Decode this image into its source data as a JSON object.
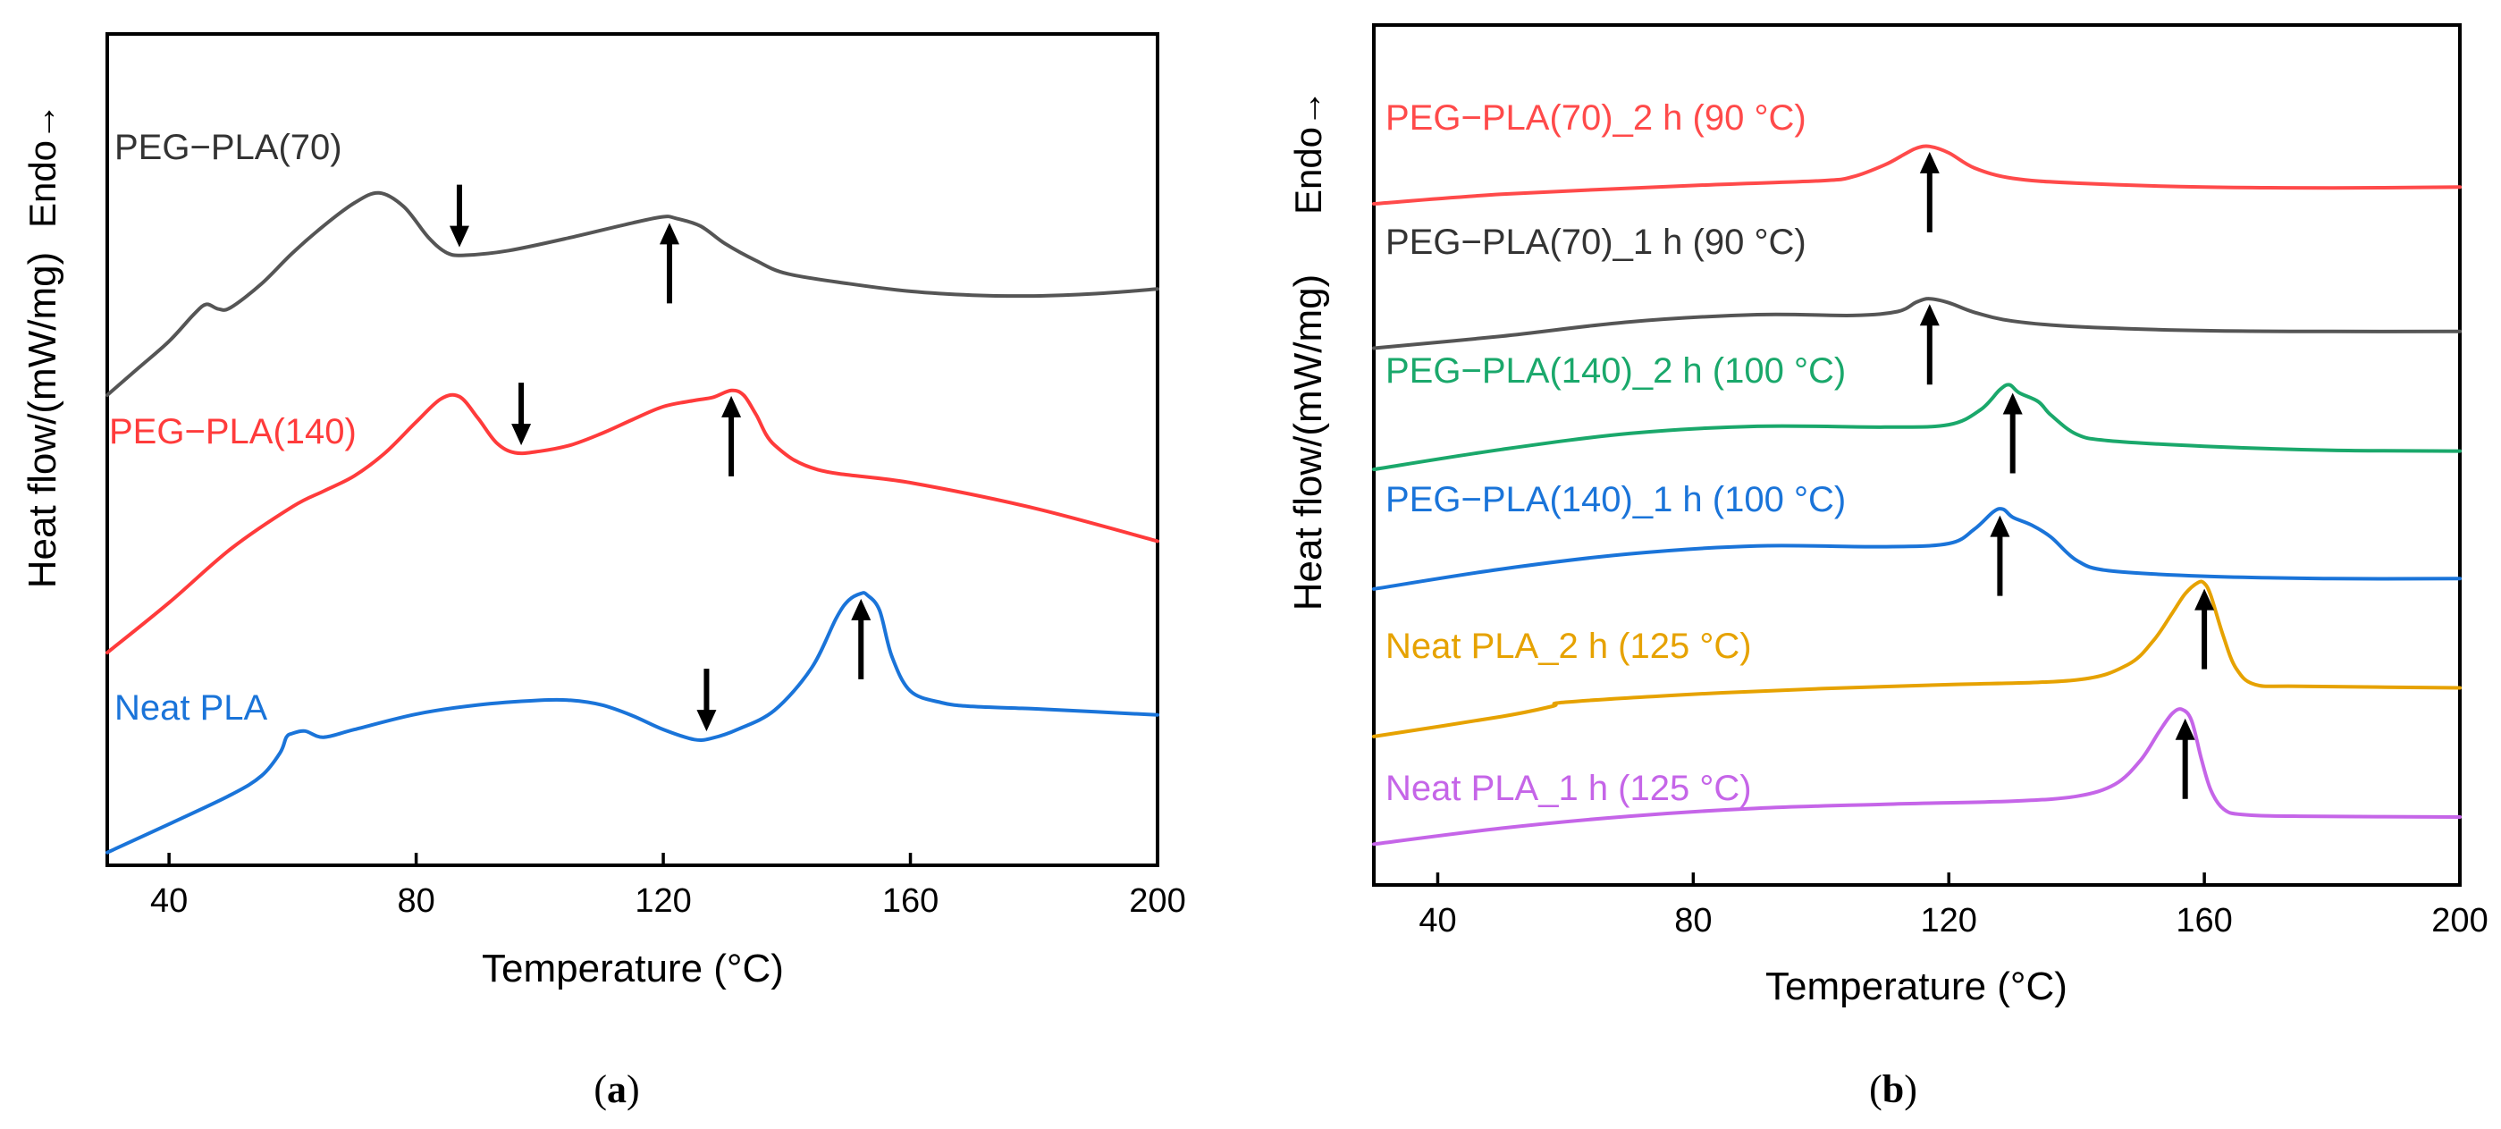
{
  "chart_data": [
    {
      "type": "line",
      "panel_label": "a",
      "xlabel": "Temperature (°C)",
      "ylabel": "Heat flow/(mW/mg)",
      "y_direction_label": "Endo→",
      "xlim": [
        30,
        200
      ],
      "xticks": [
        40,
        80,
        120,
        160,
        200
      ],
      "ylim": [
        0,
        100
      ],
      "grid": false,
      "series": [
        {
          "name": "PEG−PLA(70)",
          "color": "#555555",
          "x": [
            30,
            35,
            40,
            44,
            46,
            48,
            50,
            55,
            60,
            65,
            70,
            74,
            78,
            82,
            85,
            88,
            95,
            105,
            115,
            120,
            122,
            126,
            130,
            135,
            140,
            150,
            160,
            170,
            180,
            190,
            200
          ],
          "y": [
            60.0,
            63.5,
            67.0,
            70.5,
            71.8,
            71.2,
            71.4,
            74.5,
            78.5,
            82.0,
            85.0,
            86.3,
            84.5,
            80.5,
            78.5,
            78.2,
            78.8,
            80.5,
            82.4,
            83.2,
            83.0,
            82.0,
            79.7,
            77.5,
            75.8,
            74.5,
            73.5,
            73.0,
            72.9,
            73.2,
            73.8
          ],
          "arrows": [
            {
              "x": 87,
              "direction": "down"
            },
            {
              "x": 121,
              "direction": "up"
            }
          ]
        },
        {
          "name": "PEG−PLA(140)",
          "color": "#ff3b3b",
          "x": [
            30,
            40,
            50,
            60,
            65,
            70,
            75,
            80,
            84,
            87,
            90,
            93,
            96,
            100,
            105,
            110,
            115,
            120,
            125,
            128,
            131,
            133,
            135,
            138,
            145,
            160,
            180,
            200
          ],
          "y": [
            26.5,
            33.0,
            40.0,
            45.5,
            47.5,
            49.5,
            52.5,
            56.5,
            59.5,
            59.8,
            57.0,
            53.8,
            52.5,
            52.7,
            53.5,
            55.0,
            56.8,
            58.5,
            59.3,
            59.7,
            60.6,
            60.0,
            57.5,
            53.5,
            50.3,
            48.6,
            45.3,
            41.0
          ],
          "arrows": [
            {
              "x": 97,
              "direction": "down"
            },
            {
              "x": 131,
              "direction": "up"
            }
          ]
        },
        {
          "name": "Neat PLA",
          "color": "#1a74d9",
          "x": [
            30,
            40,
            50,
            55,
            58,
            59,
            60,
            62,
            65,
            70,
            80,
            90,
            100,
            105,
            110,
            115,
            120,
            125,
            128,
            132,
            138,
            144,
            148,
            150,
            152,
            153,
            155,
            157,
            160,
            165,
            170,
            180,
            190,
            200
          ],
          "y": [
            0.5,
            4.2,
            8.0,
            10.5,
            13.5,
            15.5,
            16.0,
            16.3,
            15.5,
            16.5,
            18.5,
            19.7,
            20.3,
            20.3,
            19.7,
            18.3,
            16.5,
            15.2,
            15.4,
            16.5,
            19.0,
            24.5,
            31.0,
            33.3,
            34.2,
            34.0,
            32.0,
            26.0,
            21.5,
            20.0,
            19.5,
            19.2,
            18.8,
            18.4
          ],
          "arrows": [
            {
              "x": 127,
              "direction": "down"
            },
            {
              "x": 152,
              "direction": "up"
            }
          ]
        }
      ]
    },
    {
      "type": "line",
      "panel_label": "b",
      "xlabel": "Temperature (°C)",
      "ylabel": "Heat flow/(mW/mg)",
      "y_direction_label": "Endo→",
      "xlim": [
        30,
        200
      ],
      "xticks": [
        40,
        80,
        120,
        160,
        200
      ],
      "ylim": [
        0,
        100
      ],
      "grid": false,
      "series": [
        {
          "name": "PEG−PLA(70)_2 h (90 °C)",
          "color": "#ff4a4a",
          "x": [
            30,
            50,
            80,
            100,
            105,
            110,
            113,
            115,
            117,
            120,
            124,
            130,
            140,
            160,
            180,
            200
          ],
          "y": [
            84.3,
            85.5,
            86.6,
            87.2,
            87.7,
            89.2,
            90.5,
            91.3,
            91.5,
            90.7,
            88.8,
            87.5,
            86.9,
            86.4,
            86.3,
            86.4
          ],
          "arrows": [
            {
              "x": 117,
              "direction": "up"
            }
          ]
        },
        {
          "name": "PEG−PLA(70)_1 h (90 °C)",
          "color": "#555555",
          "x": [
            30,
            50,
            70,
            90,
            105,
            112,
            115,
            117,
            120,
            124,
            130,
            140,
            160,
            180,
            200
          ],
          "y": [
            66.2,
            67.7,
            69.5,
            70.4,
            70.3,
            70.8,
            72.0,
            72.4,
            71.9,
            70.7,
            69.6,
            68.9,
            68.4,
            68.3,
            68.3
          ],
          "arrows": [
            {
              "x": 117,
              "direction": "up"
            }
          ]
        },
        {
          "name": "PEG−PLA(140)_2 h (100 °C)",
          "color": "#1aa86b",
          "x": [
            30,
            50,
            70,
            90,
            110,
            120,
            125,
            128,
            129.5,
            131,
            134,
            136,
            140,
            145,
            160,
            180,
            200
          ],
          "y": [
            51.0,
            53.5,
            55.5,
            56.4,
            56.3,
            56.6,
            58.5,
            61.0,
            61.6,
            60.6,
            59.5,
            57.8,
            55.4,
            54.6,
            53.9,
            53.4,
            53.3
          ],
          "arrows": [
            {
              "x": 130,
              "direction": "up"
            }
          ]
        },
        {
          "name": "PEG−PLA(140)_1 h (100 °C)",
          "color": "#1a74d9",
          "x": [
            30,
            50,
            70,
            90,
            110,
            120,
            124,
            127,
            128.5,
            130,
            133,
            136,
            140,
            145,
            160,
            180,
            200
          ],
          "y": [
            36.0,
            38.5,
            40.4,
            41.4,
            41.3,
            41.7,
            43.5,
            45.7,
            46.0,
            45.0,
            44.0,
            42.5,
            39.6,
            38.3,
            37.6,
            37.3,
            37.3
          ],
          "arrows": [
            {
              "x": 128,
              "direction": "up"
            }
          ]
        },
        {
          "name": "Neat PLA_2 h (125 °C)",
          "color": "#e6a200",
          "x": [
            30,
            50,
            58,
            60,
            80,
            100,
            120,
            140,
            148,
            152,
            155,
            157,
            159,
            160,
            161,
            163,
            165,
            168,
            175,
            200
          ],
          "y": [
            17.5,
            20.0,
            21.3,
            21.8,
            22.8,
            23.5,
            24.0,
            24.6,
            26.5,
            29.5,
            33.0,
            35.4,
            36.8,
            36.7,
            35.2,
            30.0,
            26.0,
            24.0,
            23.8,
            23.6
          ],
          "arrows": [
            {
              "x": 160,
              "direction": "up"
            }
          ]
        },
        {
          "name": "Neat PLA_1 h (125 °C)",
          "color": "#c565e8",
          "x": [
            30,
            50,
            70,
            90,
            110,
            130,
            140,
            146,
            150,
            153,
            155,
            156.5,
            158,
            159.5,
            161,
            163,
            166,
            175,
            200
          ],
          "y": [
            4.0,
            6.0,
            7.5,
            8.5,
            9.0,
            9.4,
            10.0,
            11.5,
            14.5,
            18.2,
            20.4,
            20.9,
            19.5,
            14.8,
            10.8,
            8.4,
            7.7,
            7.5,
            7.4
          ],
          "arrows": [
            {
              "x": 157,
              "direction": "up"
            }
          ]
        }
      ]
    }
  ]
}
